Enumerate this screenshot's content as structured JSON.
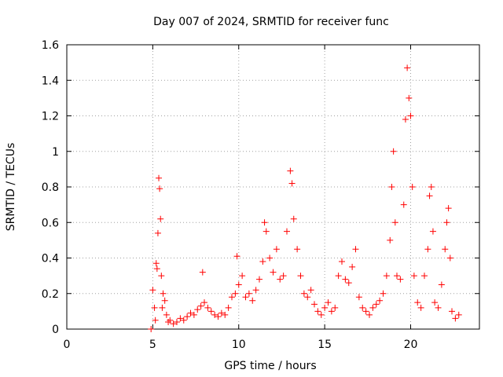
{
  "chart_data": {
    "type": "scatter",
    "title": "Day 007 of 2024, SRMTID for receiver func",
    "xlabel": "GPS time / hours",
    "ylabel": "SRMTID / TECUs",
    "xlim": [
      0,
      24
    ],
    "ylim": [
      0,
      1.6
    ],
    "x_ticks": [
      0,
      5,
      10,
      15,
      20
    ],
    "x_tick_labels": [
      "0",
      "5",
      "10",
      "15",
      "20"
    ],
    "y_ticks": [
      0,
      0.2,
      0.4,
      0.6,
      0.8,
      1.0,
      1.2,
      1.4,
      1.6
    ],
    "y_tick_labels": [
      "0",
      "0.2",
      "0.4",
      "0.6",
      "0.8",
      "1",
      "1.2",
      "1.4",
      "1.6"
    ],
    "grid": true,
    "marker": "+",
    "series_color": "#ff0000",
    "points": [
      [
        4.9,
        0.0
      ],
      [
        5.0,
        0.22
      ],
      [
        5.1,
        0.12
      ],
      [
        5.15,
        0.05
      ],
      [
        5.2,
        0.37
      ],
      [
        5.25,
        0.34
      ],
      [
        5.3,
        0.54
      ],
      [
        5.35,
        0.85
      ],
      [
        5.4,
        0.79
      ],
      [
        5.45,
        0.62
      ],
      [
        5.5,
        0.3
      ],
      [
        5.55,
        0.12
      ],
      [
        5.6,
        0.2
      ],
      [
        5.7,
        0.16
      ],
      [
        5.8,
        0.08
      ],
      [
        5.9,
        0.04
      ],
      [
        6.0,
        0.05
      ],
      [
        6.2,
        0.03
      ],
      [
        6.4,
        0.04
      ],
      [
        6.6,
        0.06
      ],
      [
        6.8,
        0.05
      ],
      [
        7.0,
        0.07
      ],
      [
        7.2,
        0.09
      ],
      [
        7.4,
        0.08
      ],
      [
        7.6,
        0.11
      ],
      [
        7.8,
        0.13
      ],
      [
        7.9,
        0.32
      ],
      [
        8.0,
        0.15
      ],
      [
        8.2,
        0.12
      ],
      [
        8.4,
        0.1
      ],
      [
        8.6,
        0.08
      ],
      [
        8.8,
        0.07
      ],
      [
        9.0,
        0.09
      ],
      [
        9.2,
        0.08
      ],
      [
        9.4,
        0.12
      ],
      [
        9.6,
        0.18
      ],
      [
        9.8,
        0.2
      ],
      [
        9.9,
        0.41
      ],
      [
        10.0,
        0.25
      ],
      [
        10.2,
        0.3
      ],
      [
        10.4,
        0.18
      ],
      [
        10.6,
        0.2
      ],
      [
        10.8,
        0.16
      ],
      [
        11.0,
        0.22
      ],
      [
        11.2,
        0.28
      ],
      [
        11.4,
        0.38
      ],
      [
        11.5,
        0.6
      ],
      [
        11.6,
        0.55
      ],
      [
        11.8,
        0.4
      ],
      [
        12.0,
        0.32
      ],
      [
        12.2,
        0.45
      ],
      [
        12.4,
        0.28
      ],
      [
        12.6,
        0.3
      ],
      [
        12.8,
        0.55
      ],
      [
        13.0,
        0.89
      ],
      [
        13.1,
        0.82
      ],
      [
        13.2,
        0.62
      ],
      [
        13.4,
        0.45
      ],
      [
        13.6,
        0.3
      ],
      [
        13.8,
        0.2
      ],
      [
        14.0,
        0.18
      ],
      [
        14.2,
        0.22
      ],
      [
        14.4,
        0.14
      ],
      [
        14.6,
        0.1
      ],
      [
        14.8,
        0.08
      ],
      [
        15.0,
        0.12
      ],
      [
        15.2,
        0.15
      ],
      [
        15.4,
        0.1
      ],
      [
        15.6,
        0.12
      ],
      [
        15.8,
        0.3
      ],
      [
        16.0,
        0.38
      ],
      [
        16.2,
        0.28
      ],
      [
        16.4,
        0.26
      ],
      [
        16.6,
        0.35
      ],
      [
        16.8,
        0.45
      ],
      [
        17.0,
        0.18
      ],
      [
        17.2,
        0.12
      ],
      [
        17.4,
        0.1
      ],
      [
        17.6,
        0.08
      ],
      [
        17.8,
        0.12
      ],
      [
        18.0,
        0.14
      ],
      [
        18.2,
        0.16
      ],
      [
        18.4,
        0.2
      ],
      [
        18.6,
        0.3
      ],
      [
        18.8,
        0.5
      ],
      [
        18.9,
        0.8
      ],
      [
        19.0,
        1.0
      ],
      [
        19.1,
        0.6
      ],
      [
        19.2,
        0.3
      ],
      [
        19.4,
        0.28
      ],
      [
        19.6,
        0.7
      ],
      [
        19.7,
        1.18
      ],
      [
        19.8,
        1.47
      ],
      [
        19.9,
        1.3
      ],
      [
        20.0,
        1.2
      ],
      [
        20.1,
        0.8
      ],
      [
        20.2,
        0.3
      ],
      [
        20.4,
        0.15
      ],
      [
        20.6,
        0.12
      ],
      [
        20.8,
        0.3
      ],
      [
        21.0,
        0.45
      ],
      [
        21.1,
        0.75
      ],
      [
        21.2,
        0.8
      ],
      [
        21.3,
        0.55
      ],
      [
        21.4,
        0.15
      ],
      [
        21.6,
        0.12
      ],
      [
        21.8,
        0.25
      ],
      [
        22.0,
        0.45
      ],
      [
        22.1,
        0.6
      ],
      [
        22.2,
        0.68
      ],
      [
        22.3,
        0.4
      ],
      [
        22.4,
        0.1
      ],
      [
        22.6,
        0.06
      ],
      [
        22.8,
        0.08
      ]
    ]
  }
}
